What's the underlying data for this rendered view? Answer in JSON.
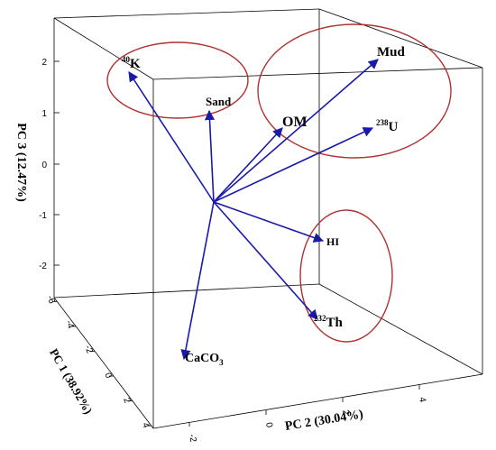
{
  "chart_data": {
    "type": "scatter",
    "subtype": "3d-biplot",
    "title": "",
    "axes": {
      "z": {
        "label": "PC 3 (12.47%)",
        "ticks": [
          "2",
          "1",
          "0",
          "-1",
          "-2"
        ]
      },
      "x": {
        "label": "PC 2 (30.04%)",
        "ticks": [
          "-2",
          "0",
          "2",
          "4"
        ]
      },
      "y": {
        "label": "PC 1 (38.92%)",
        "ticks": [
          "-6",
          "-4",
          "-2",
          "0",
          "2",
          "4"
        ]
      }
    },
    "vectors": [
      {
        "id": "k40",
        "sup": "40",
        "name": "K",
        "pc3": 1.77
      },
      {
        "id": "sand",
        "sup": "",
        "name": "Sand",
        "pc3": 1.0
      },
      {
        "id": "om",
        "sup": "",
        "name": "OM",
        "pc3": 0.6
      },
      {
        "id": "mud",
        "sup": "",
        "name": "Mud",
        "pc3": 2.0
      },
      {
        "id": "u238",
        "sup": "238",
        "name": "U",
        "pc3": 0.7
      },
      {
        "id": "hi",
        "sup": "",
        "name": "HI",
        "pc3": -1.55
      },
      {
        "id": "th232",
        "sup": "232",
        "name": "Th",
        "pc3": -2.95
      },
      {
        "id": "caco3",
        "sup": "",
        "name": "CaCO",
        "sub": "3",
        "pc3": -3.85
      }
    ],
    "groups": [
      {
        "members": [
          "K",
          "Sand"
        ],
        "outline": "ellipse"
      },
      {
        "members": [
          "Mud",
          "OM",
          "U"
        ],
        "outline": "ellipse"
      },
      {
        "members": [
          "HI",
          "Th"
        ],
        "outline": "ellipse"
      }
    ],
    "colors": {
      "arrow": "#1a1aa8",
      "ellipse": "#b03030",
      "box": "#000000"
    }
  }
}
